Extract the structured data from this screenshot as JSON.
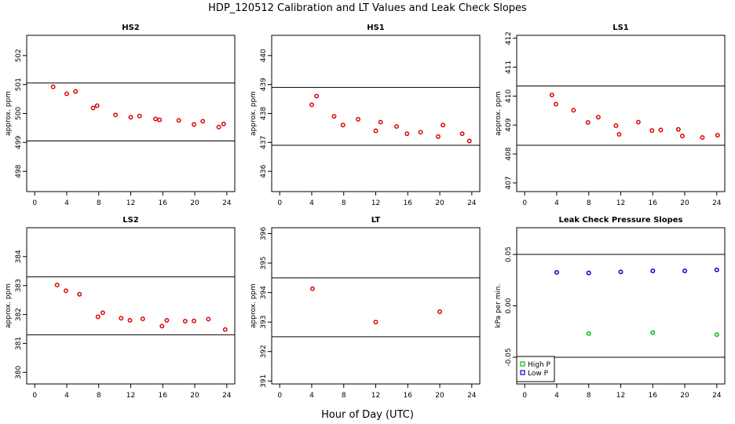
{
  "figure": {
    "title": "HDP_120512  Calibration and LT Values and Leak Check Slopes",
    "xlabel": "Hour of Day (UTC)"
  },
  "chart_data": [
    {
      "type": "scatter",
      "title": "HS2",
      "ylabel": "approx. ppm",
      "xlim": [
        -1,
        25
      ],
      "ylim": [
        497.3,
        502.7
      ],
      "xticks": [
        "0",
        "4",
        "8",
        "12",
        "16",
        "20",
        "24"
      ],
      "xtick_values": [
        0,
        4,
        8,
        12,
        16,
        20,
        24
      ],
      "yticks": [
        "498",
        "499",
        "500",
        "501",
        "502"
      ],
      "ytick_values": [
        498,
        499,
        500,
        501,
        502
      ],
      "hlines": [
        501.05,
        499.05
      ],
      "series": [
        {
          "color": "#dd0000",
          "x": [
            2.3,
            4.0,
            5.1,
            7.3,
            7.8,
            10.1,
            12.0,
            13.1,
            15.1,
            15.6,
            18.0,
            19.9,
            21.0,
            23.0,
            23.6
          ],
          "y": [
            500.92,
            500.68,
            500.76,
            500.19,
            500.27,
            499.95,
            499.87,
            499.91,
            499.81,
            499.78,
            499.76,
            499.62,
            499.73,
            499.53,
            499.64
          ]
        }
      ]
    },
    {
      "type": "scatter",
      "title": "HS1",
      "ylabel": "approx. ppm",
      "xlim": [
        -1,
        25
      ],
      "ylim": [
        435.3,
        440.7
      ],
      "xticks": [
        "0",
        "4",
        "8",
        "12",
        "16",
        "20",
        "24"
      ],
      "xtick_values": [
        0,
        4,
        8,
        12,
        16,
        20,
        24
      ],
      "yticks": [
        "436",
        "437",
        "438",
        "439",
        "440"
      ],
      "ytick_values": [
        436,
        437,
        438,
        439,
        440
      ],
      "hlines": [
        438.9,
        436.9
      ],
      "series": [
        {
          "color": "#dd0000",
          "x": [
            4.0,
            4.6,
            6.8,
            7.9,
            9.8,
            12.0,
            12.6,
            14.6,
            15.9,
            17.6,
            19.8,
            20.4,
            22.8,
            23.7
          ],
          "y": [
            438.3,
            438.6,
            437.9,
            437.6,
            437.8,
            437.4,
            437.7,
            437.55,
            437.3,
            437.35,
            437.2,
            437.6,
            437.3,
            437.05
          ]
        }
      ]
    },
    {
      "type": "scatter",
      "title": "LS1",
      "ylabel": "approx. ppm",
      "xlim": [
        -1,
        25
      ],
      "ylim": [
        406.7,
        412.1
      ],
      "xticks": [
        "0",
        "4",
        "8",
        "12",
        "16",
        "20",
        "24"
      ],
      "xtick_values": [
        0,
        4,
        8,
        12,
        16,
        20,
        24
      ],
      "yticks": [
        "407",
        "408",
        "409",
        "410",
        "411",
        "412"
      ],
      "ytick_values": [
        407,
        408,
        409,
        410,
        411,
        412
      ],
      "hlines": [
        410.35,
        408.3
      ],
      "series": [
        {
          "color": "#dd0000",
          "x": [
            3.4,
            3.9,
            6.1,
            7.9,
            9.2,
            11.4,
            11.8,
            14.2,
            15.9,
            17.0,
            19.2,
            19.7,
            22.2,
            24.1
          ],
          "y": [
            410.04,
            409.72,
            409.51,
            409.09,
            409.27,
            408.98,
            408.68,
            409.1,
            408.81,
            408.83,
            408.85,
            408.62,
            408.57,
            408.65
          ]
        }
      ]
    },
    {
      "type": "scatter",
      "title": "LS2",
      "ylabel": "approx. ppm",
      "xlim": [
        -1,
        25
      ],
      "ylim": [
        379.6,
        385.0
      ],
      "xticks": [
        "0",
        "4",
        "8",
        "12",
        "16",
        "20",
        "24"
      ],
      "xtick_values": [
        0,
        4,
        8,
        12,
        16,
        20,
        24
      ],
      "yticks": [
        "380",
        "381",
        "382",
        "383",
        "384"
      ],
      "ytick_values": [
        380,
        381,
        382,
        383,
        384
      ],
      "hlines": [
        383.3,
        381.3
      ],
      "series": [
        {
          "color": "#dd0000",
          "x": [
            2.8,
            3.9,
            5.6,
            7.9,
            8.5,
            10.8,
            11.9,
            13.5,
            15.9,
            16.5,
            18.8,
            19.9,
            21.7,
            23.8
          ],
          "y": [
            383.02,
            382.82,
            382.7,
            381.92,
            382.06,
            381.87,
            381.8,
            381.85,
            381.6,
            381.8,
            381.77,
            381.78,
            381.84,
            381.48
          ]
        }
      ]
    },
    {
      "type": "scatter",
      "title": "LT",
      "ylabel": "approx. ppm",
      "xlim": [
        -1,
        25
      ],
      "ylim": [
        390.9,
        396.2
      ],
      "xticks": [
        "0",
        "4",
        "8",
        "12",
        "16",
        "20",
        "24"
      ],
      "xtick_values": [
        0,
        4,
        8,
        12,
        16,
        20,
        24
      ],
      "yticks": [
        "391",
        "392",
        "393",
        "394",
        "395",
        "396"
      ],
      "ytick_values": [
        391,
        392,
        393,
        394,
        395,
        396
      ],
      "hlines": [
        394.5,
        392.5
      ],
      "series": [
        {
          "color": "#dd0000",
          "x": [
            4.1,
            12.0,
            20.0
          ],
          "y": [
            394.13,
            393.0,
            393.35
          ]
        }
      ]
    },
    {
      "type": "scatter",
      "title": "Leak Check Pressure Slopes",
      "ylabel": "kPa per min.",
      "xlim": [
        -1,
        25
      ],
      "ylim": [
        -0.076,
        0.076
      ],
      "xticks": [
        "0",
        "4",
        "8",
        "12",
        "16",
        "20",
        "24"
      ],
      "xtick_values": [
        0,
        4,
        8,
        12,
        16,
        20,
        24
      ],
      "yticks": [
        "-0.05",
        "0.00",
        "0.05"
      ],
      "ytick_values": [
        -0.05,
        0.0,
        0.05
      ],
      "hlines": [
        0.05,
        -0.05
      ],
      "legend": {
        "position": "bottom-left",
        "entries": [
          "High P",
          "Low P"
        ]
      },
      "series": [
        {
          "name": "High P",
          "color": "#00bb00",
          "x": [
            8,
            16,
            24
          ],
          "y": [
            -0.027,
            -0.026,
            -0.028
          ]
        },
        {
          "name": "Low P",
          "color": "#0000cc",
          "x": [
            4,
            8,
            12,
            16,
            20,
            24
          ],
          "y": [
            0.0325,
            0.032,
            0.033,
            0.034,
            0.034,
            0.035
          ]
        }
      ]
    }
  ]
}
